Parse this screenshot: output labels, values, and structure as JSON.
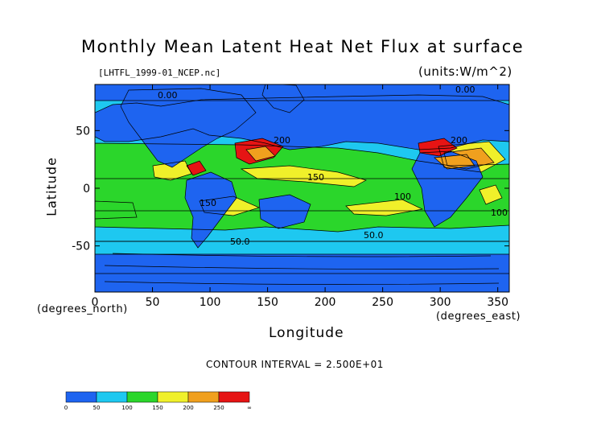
{
  "title": "Monthly Mean Latent Heat Net Flux at surface",
  "filename": "[LHTFL_1999-01_NCEP.nc]",
  "units": "(units:W/m^2)",
  "xaxis": {
    "label": "Longitude",
    "unit_label": "(degrees_east)",
    "ticks": [
      "0",
      "50",
      "100",
      "150",
      "200",
      "250",
      "300",
      "350"
    ],
    "tick_values": [
      0,
      50,
      100,
      150,
      200,
      250,
      300,
      350
    ],
    "range": [
      0,
      360
    ]
  },
  "yaxis": {
    "label": "Latitude",
    "unit_label": "(degrees_north)",
    "ticks": [
      "50",
      "0",
      "-50"
    ],
    "tick_values": [
      50,
      0,
      -50
    ],
    "range": [
      -90,
      90
    ]
  },
  "contour_interval": "CONTOUR INTERVAL = 2.500E+01",
  "contour_labels": [
    "0.00",
    "0.00",
    "200",
    "200",
    "150",
    "150",
    "100",
    "100",
    "50.0",
    "50.0"
  ],
  "colorbar": {
    "boundaries": [
      "0",
      "50",
      "100",
      "150",
      "200",
      "250",
      "∞"
    ],
    "colors": [
      "#1e64f0",
      "#1ec8f0",
      "#2bd62b",
      "#f0f02a",
      "#f0a01e",
      "#e61414"
    ]
  },
  "palette": {
    "deep_blue": "#1e64f0",
    "cyan": "#1ec8f0",
    "green": "#2bd62b",
    "yellow": "#f0f02a",
    "orange": "#f0a01e",
    "red": "#e61414",
    "land": "#1e64f0"
  }
}
